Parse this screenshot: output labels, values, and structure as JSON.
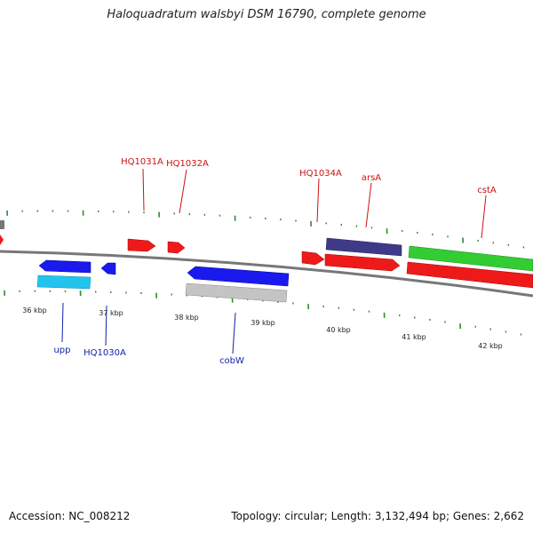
{
  "title": "Haloquadratum walsbyi DSM 16790, complete genome",
  "footer": {
    "accession": "Accession: NC_008212",
    "summary": "Topology: circular; Length: 3,132,494 bp; Genes: 2,662"
  },
  "colors": {
    "backbone": "#777777",
    "ticks": "#2f8a2f",
    "label_forward": "#cc1111",
    "label_reverse": "#1122aa"
  },
  "scale_labels": [
    "36 kbp",
    "37 kbp",
    "38 kbp",
    "39 kbp",
    "40 kbp",
    "41 kbp",
    "42 kbp"
  ],
  "genes": [
    {
      "name": "HQ1031A",
      "strand": "forward",
      "color": "#ee1a1a"
    },
    {
      "name": "HQ1032A",
      "strand": "forward",
      "color": "#ee1a1a"
    },
    {
      "name": "HQ1034A",
      "strand": "forward",
      "color": "#ee1a1a"
    },
    {
      "name": "arsA",
      "strand": "forward",
      "color": "#ee1a1a"
    },
    {
      "name": "cstA",
      "strand": "forward",
      "color": "#ee1a1a"
    },
    {
      "name": "upp",
      "strand": "reverse",
      "color": "#1a1aee"
    },
    {
      "name": "HQ1030A",
      "strand": "reverse",
      "color": "#1a1aee"
    },
    {
      "name": "cobW",
      "strand": "reverse",
      "color": "#1a1aee"
    }
  ]
}
